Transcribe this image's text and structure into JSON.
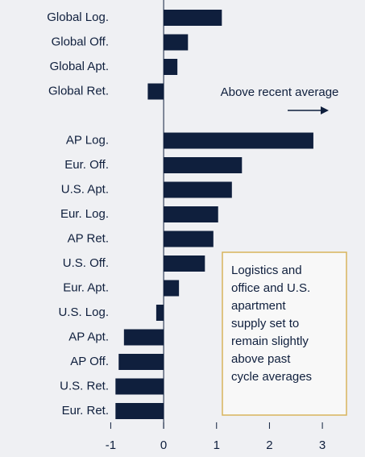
{
  "chart_data": {
    "type": "bar",
    "orientation": "horizontal",
    "categories": [
      "Global Log.",
      "Global Off.",
      "Global Apt.",
      "Global Ret.",
      null,
      "AP Log.",
      "Eur. Off.",
      "U.S. Apt.",
      "Eur. Log.",
      "AP Ret.",
      "U.S. Off.",
      "Eur. Apt.",
      "U.S. Log.",
      "AP Apt.",
      "AP Off.",
      "U.S. Ret.",
      "Eur. Ret."
    ],
    "values": [
      1.1,
      0.46,
      0.26,
      -0.3,
      null,
      2.83,
      1.48,
      1.29,
      1.03,
      0.94,
      0.78,
      0.29,
      -0.14,
      -0.75,
      -0.85,
      -0.91,
      -0.91
    ],
    "color": "#0f1f3d",
    "xlim": [
      -1.25,
      3.6
    ],
    "xticks": [
      -1,
      0,
      1,
      2,
      3
    ],
    "grid": false,
    "annotations": [
      "Above recent average",
      [
        "Logistics and",
        "office and U.S.",
        "apartment",
        "supply set to",
        "remain slightly",
        "above past",
        "cycle averages"
      ]
    ]
  }
}
